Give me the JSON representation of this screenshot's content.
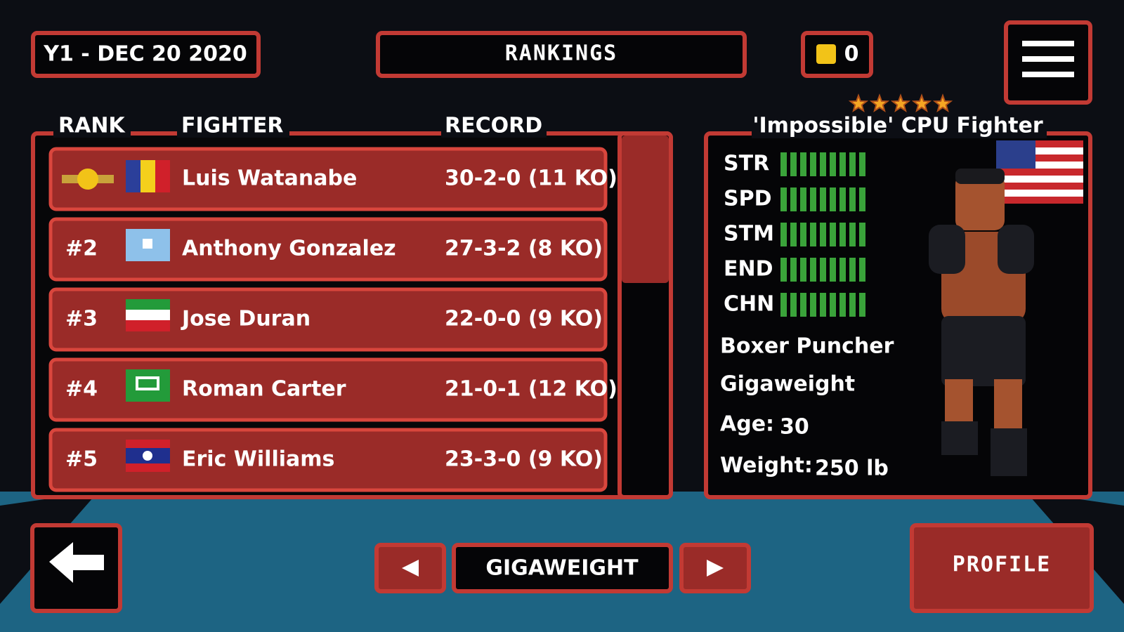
{
  "header": {
    "date": "Y1 - DEC 20 2020",
    "title": "RANKINGS",
    "coins": "0"
  },
  "rankings": {
    "headers": {
      "rank": "RANK",
      "fighter": "FIGHTER",
      "record": "RECORD"
    },
    "rows": [
      {
        "name": "Luis Watanabe",
        "record": "30-2-0 (11 KO)"
      },
      {
        "rank": "#2",
        "name": "Anthony Gonzalez",
        "record": "27-3-2 (8 KO)"
      },
      {
        "rank": "#3",
        "name": "Jose Duran",
        "record": "22-0-0 (9 KO)"
      },
      {
        "rank": "#4",
        "name": "Roman Carter",
        "record": "21-0-1 (12 KO)"
      },
      {
        "rank": "#5",
        "name": "Eric Williams",
        "record": "23-3-0 (9 KO)"
      }
    ]
  },
  "fighter": {
    "title": "'Impossible' CPU Fighter",
    "stars": 5,
    "stats": [
      {
        "label": "STR",
        "value": 9
      },
      {
        "label": "SPD",
        "value": 9
      },
      {
        "label": "STM",
        "value": 9
      },
      {
        "label": "END",
        "value": 9
      },
      {
        "label": "CHN",
        "value": 9
      }
    ],
    "style": "Boxer Puncher",
    "weight_class": "Gigaweight",
    "age_label": "Age:",
    "age": "30",
    "weight_label": "Weight:",
    "weight": "250 lb"
  },
  "footer": {
    "division": "GIGAWEIGHT",
    "profile": "PROFILE"
  }
}
